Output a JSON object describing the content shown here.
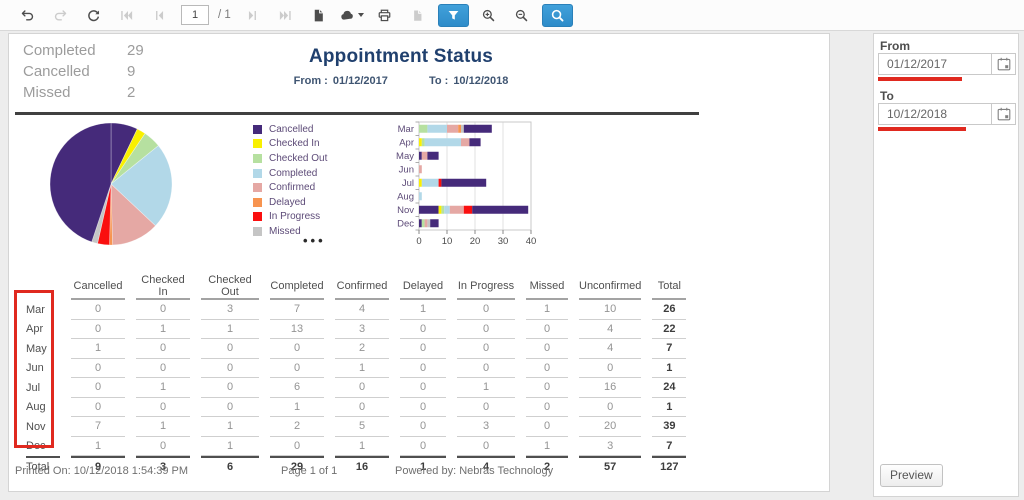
{
  "toolbar": {
    "page_value": "1",
    "page_total_label": "/ 1",
    "buttons": [
      {
        "id": "undo",
        "icon": "undo-icon",
        "state": "enabled"
      },
      {
        "id": "redo",
        "icon": "redo-icon",
        "state": "disabled"
      },
      {
        "id": "refresh",
        "icon": "refresh-icon",
        "state": "enabled"
      },
      {
        "id": "first-page",
        "icon": "first-page-icon",
        "state": "disabled"
      },
      {
        "id": "prev-page",
        "icon": "prev-page-icon",
        "state": "disabled"
      },
      {
        "id": "page-input",
        "type": "page-input"
      },
      {
        "id": "page-count",
        "type": "page-label"
      },
      {
        "id": "next-page",
        "icon": "next-page-icon",
        "state": "disabled"
      },
      {
        "id": "last-page",
        "icon": "last-page-icon",
        "state": "disabled"
      },
      {
        "id": "export",
        "icon": "document-icon",
        "state": "enabled"
      },
      {
        "id": "download",
        "icon": "cloud-download-icon",
        "state": "enabled",
        "caret": true
      },
      {
        "id": "print",
        "icon": "printer-icon",
        "state": "enabled"
      },
      {
        "id": "attachment",
        "icon": "file-icon",
        "state": "disabled"
      },
      {
        "id": "filter",
        "icon": "funnel-icon",
        "state": "active"
      },
      {
        "id": "zoom-in",
        "icon": "zoom-in-icon",
        "state": "enabled"
      },
      {
        "id": "zoom-out",
        "icon": "zoom-out-icon",
        "state": "enabled"
      },
      {
        "id": "search",
        "icon": "search-icon",
        "state": "active"
      }
    ]
  },
  "report": {
    "title": "Appointment Status",
    "from_label": "From :",
    "from_value": "01/12/2017",
    "to_label": "To :",
    "to_value": "10/12/2018",
    "summary": [
      {
        "label": "Completed",
        "value": "29"
      },
      {
        "label": "Cancelled",
        "value": "9"
      },
      {
        "label": "Missed",
        "value": "2"
      }
    ],
    "footer": {
      "printed_on": "Printed On: 10/12/2018 1:54:39 PM",
      "page": "Page 1 of 1",
      "powered_by": "Powered by: Nebras Technology"
    }
  },
  "chart_data": [
    {
      "type": "pie",
      "legend_position": "right",
      "legend_visible_count": 8,
      "legend_more_indicator": "•••",
      "slices": [
        {
          "label": "Cancelled",
          "value": 9,
          "color": "#452a7a"
        },
        {
          "label": "Checked In",
          "value": 3,
          "color": "#f9f000"
        },
        {
          "label": "Checked Out",
          "value": 6,
          "color": "#b6e0a0"
        },
        {
          "label": "Completed",
          "value": 29,
          "color": "#b2d8e8"
        },
        {
          "label": "Confirmed",
          "value": 16,
          "color": "#e5a8a4"
        },
        {
          "label": "Delayed",
          "value": 1,
          "color": "#f79450"
        },
        {
          "label": "In Progress",
          "value": 4,
          "color": "#fa0f0f"
        },
        {
          "label": "Missed",
          "value": 2,
          "color": "#c5c5c5"
        },
        {
          "label": "Unconfirmed",
          "value": 57,
          "color": "#452a7a"
        }
      ]
    },
    {
      "type": "bar",
      "subtype": "horizontal-stacked",
      "categories": [
        "Mar",
        "Apr",
        "May",
        "Jun",
        "Jul",
        "Aug",
        "Nov",
        "Dec"
      ],
      "series": [
        {
          "name": "Cancelled",
          "color": "#452a7a",
          "values": [
            0,
            0,
            1,
            0,
            0,
            0,
            7,
            1
          ]
        },
        {
          "name": "Checked In",
          "color": "#f9f000",
          "values": [
            0,
            1,
            0,
            0,
            1,
            0,
            1,
            0
          ]
        },
        {
          "name": "Checked Out",
          "color": "#b6e0a0",
          "values": [
            3,
            1,
            0,
            0,
            0,
            0,
            1,
            1
          ]
        },
        {
          "name": "Completed",
          "color": "#b2d8e8",
          "values": [
            7,
            13,
            0,
            0,
            6,
            1,
            2,
            0
          ]
        },
        {
          "name": "Confirmed",
          "color": "#e5a8a4",
          "values": [
            4,
            3,
            2,
            1,
            0,
            0,
            5,
            1
          ]
        },
        {
          "name": "Delayed",
          "color": "#f79450",
          "values": [
            1,
            0,
            0,
            0,
            0,
            0,
            0,
            0
          ]
        },
        {
          "name": "In Progress",
          "color": "#fa0f0f",
          "values": [
            0,
            0,
            0,
            0,
            1,
            0,
            3,
            0
          ]
        },
        {
          "name": "Missed",
          "color": "#c5c5c5",
          "values": [
            1,
            0,
            0,
            0,
            0,
            0,
            0,
            1
          ]
        },
        {
          "name": "Unconfirmed",
          "color": "#452a7a",
          "values": [
            10,
            4,
            4,
            0,
            16,
            0,
            20,
            3
          ]
        }
      ],
      "xlim": [
        0,
        40
      ],
      "xticks": [
        0,
        10,
        20,
        30,
        40
      ],
      "grid": true
    }
  ],
  "table": {
    "columns": [
      "",
      "Cancelled",
      "Checked In",
      "Checked Out",
      "Completed",
      "Confirmed",
      "Delayed",
      "In Progress",
      "Missed",
      "Unconfirmed",
      "Total"
    ],
    "rows": [
      {
        "label": "Mar",
        "values": [
          0,
          0,
          3,
          7,
          4,
          1,
          0,
          1,
          10,
          26
        ]
      },
      {
        "label": "Apr",
        "values": [
          0,
          1,
          1,
          13,
          3,
          0,
          0,
          0,
          4,
          22
        ]
      },
      {
        "label": "May",
        "values": [
          1,
          0,
          0,
          0,
          2,
          0,
          0,
          0,
          4,
          7
        ]
      },
      {
        "label": "Jun",
        "values": [
          0,
          0,
          0,
          0,
          1,
          0,
          0,
          0,
          0,
          1
        ]
      },
      {
        "label": "Jul",
        "values": [
          0,
          1,
          0,
          6,
          0,
          0,
          1,
          0,
          16,
          24
        ]
      },
      {
        "label": "Aug",
        "values": [
          0,
          0,
          0,
          1,
          0,
          0,
          0,
          0,
          0,
          1
        ]
      },
      {
        "label": "Nov",
        "values": [
          7,
          1,
          1,
          2,
          5,
          0,
          3,
          0,
          20,
          39
        ]
      },
      {
        "label": "Dec",
        "values": [
          1,
          0,
          1,
          0,
          1,
          0,
          0,
          1,
          3,
          7
        ]
      }
    ],
    "total_row": {
      "label": "Total",
      "values": [
        9,
        3,
        6,
        29,
        16,
        1,
        4,
        2,
        57,
        127
      ]
    }
  },
  "sidebar": {
    "from_label": "From",
    "from_value": "01/12/2017",
    "to_label": "To",
    "to_value": "10/12/2018",
    "preview_label": "Preview"
  },
  "annotations": {
    "color": "#e0291f",
    "month_column_box": true,
    "from_underline": true,
    "to_underline": true
  }
}
